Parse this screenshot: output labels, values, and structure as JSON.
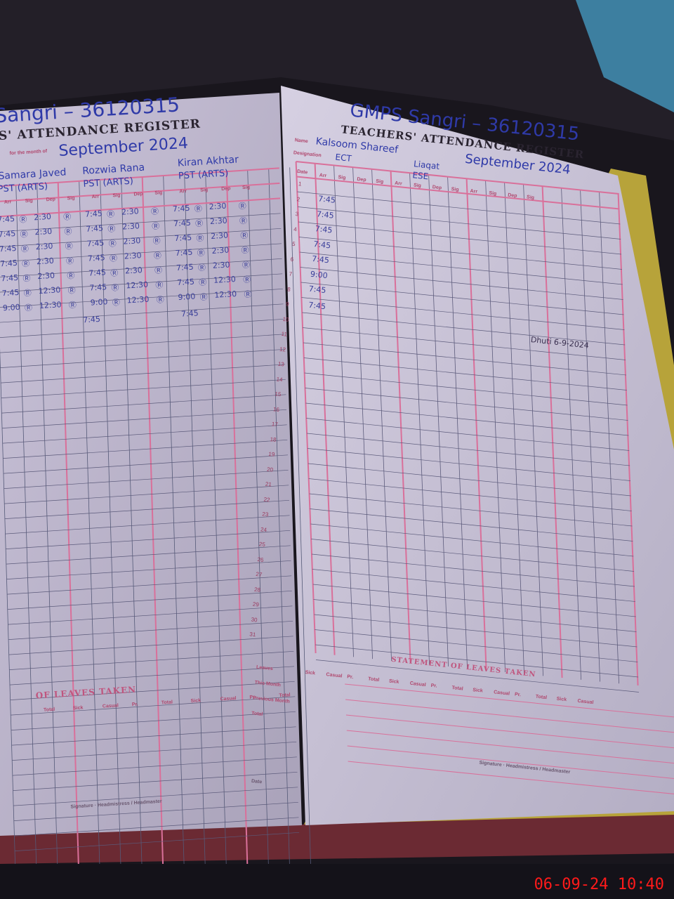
{
  "left_page": {
    "school_code": "Sangri – 36120315",
    "register_title": "S' ATTENDANCE REGISTER",
    "month_label": "for the month of",
    "month": "September 2024",
    "teachers": [
      {
        "name": "Samara Javed",
        "designation": "PST (ARTS)"
      },
      {
        "name": "Rozwia Rana",
        "designation": "PST (ARTS)"
      },
      {
        "name": "Kiran Akhtar",
        "designation": "PST (ARTS)"
      }
    ],
    "column_headers": [
      "Arr",
      "Sig",
      "Dep",
      "Sig"
    ],
    "entries": {
      "arrival": [
        "7:45",
        "7:45",
        "7:45",
        "7:45",
        "7:45",
        "7:45",
        "9:00"
      ],
      "departure": [
        "2:30",
        "2:30",
        "2:30",
        "2:30",
        "2:30",
        "12:30",
        "12:30"
      ],
      "signature": "Ⓡ",
      "extra_arrival": "7:45"
    },
    "leaves_heading": "OF LEAVES TAKEN",
    "leaves_columns": [
      "Total",
      "Sick",
      "Casual",
      "Pr.",
      "Total",
      "Sick",
      "Casual",
      "Pr.",
      "Total"
    ],
    "footer": "Signature · Headmistress / Headmaster"
  },
  "right_page": {
    "school_code": "GMPS Sangri – 36120315",
    "register_title": "TEACHERS' ATTENDANCE REGISTER",
    "month": "September 2024",
    "name_label": "Name",
    "designation_label": "Designation",
    "teachers": [
      {
        "name": "Kalsoom Shareef",
        "designation": "ECT"
      },
      {
        "name": "Liaqat",
        "designation": "ESE"
      }
    ],
    "date_header": "Date",
    "days": [
      "1",
      "2",
      "3",
      "4",
      "5",
      "6",
      "7",
      "8",
      "9",
      "10",
      "11",
      "12",
      "13",
      "14",
      "15",
      "16",
      "17",
      "18",
      "19",
      "20",
      "21",
      "22",
      "23",
      "24",
      "25",
      "26",
      "27",
      "28",
      "29",
      "30",
      "31"
    ],
    "column_headers": [
      "Arr",
      "Sig",
      "Dep",
      "Sig"
    ],
    "entries": [
      "7:45",
      "7:45",
      "7:45",
      "7:45",
      "7:45",
      "9:00",
      "7:45"
    ],
    "side_note": "Dhuti 6-9-2024",
    "leaves_heading": "STATEMENT OF LEAVES TAKEN",
    "leaves_row_labels": [
      "Leaves",
      "This Month",
      "Previous Month",
      "Total"
    ],
    "leaves_columns": [
      "Sick",
      "Casual",
      "Pr.",
      "Total",
      "Sick",
      "Casual",
      "Pr.",
      "Total",
      "Sick",
      "Casual",
      "Pr.",
      "Total",
      "Sick",
      "Casual"
    ],
    "footer_date": "Date",
    "footer_sign": "Signature · Headmistress / Headmaster"
  },
  "timestamp": "06-09-24  10:40",
  "colors": {
    "grid_pink": "#d9709a",
    "ink_blue": "#2f3aa8",
    "paper": "#cfc8dc",
    "timestamp": "#ff1a1a",
    "cover_yellow": "#c9b23a"
  }
}
